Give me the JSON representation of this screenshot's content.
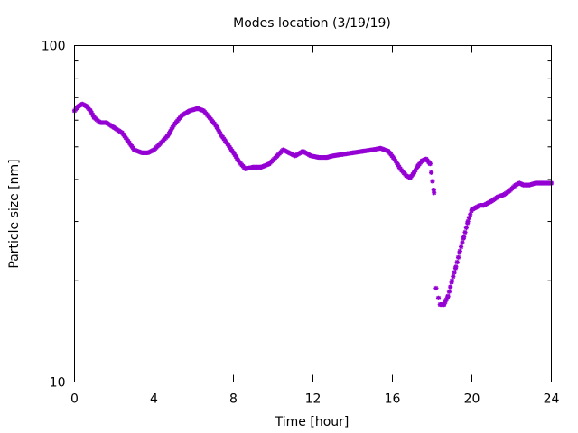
{
  "chart_data": {
    "type": "scatter",
    "title": "Modes location (3/19/19)",
    "xlabel": "Time [hour]",
    "ylabel": "Particle size [nm]",
    "xlim": [
      0,
      24
    ],
    "ylim": [
      10,
      100
    ],
    "yscale": "log",
    "grid": false,
    "legend": "none",
    "marker_color": "#9400d3",
    "x_ticks": [
      0,
      4,
      8,
      12,
      16,
      20,
      24
    ],
    "x_tick_labels": [
      "0",
      "4",
      "8",
      "12",
      "16",
      "20",
      "24"
    ],
    "y_ticks": [
      10,
      100
    ],
    "y_tick_labels": [
      "10",
      "100"
    ],
    "y_minor_ticks": [
      20,
      30,
      40,
      50,
      60,
      70,
      80,
      90
    ],
    "series": [
      {
        "x": [
          0.0,
          0.2,
          0.4,
          0.6,
          0.8,
          1.0,
          1.3,
          1.6,
          2.0,
          2.4,
          2.7,
          3.0,
          3.4,
          3.7,
          4.0,
          4.3,
          4.7,
          5.0,
          5.4,
          5.8,
          6.2,
          6.5,
          6.8,
          7.1,
          7.4,
          7.7,
          8.0,
          8.3,
          8.6,
          9.0,
          9.4,
          9.8,
          10.2,
          10.5,
          10.8,
          11.1,
          11.5,
          11.9,
          12.3,
          12.7,
          13.0,
          13.5,
          14.0,
          14.5,
          15.0,
          15.4,
          15.8,
          16.1,
          16.4,
          16.7,
          16.9,
          17.1,
          17.3,
          17.5,
          17.7,
          17.9,
          18.1,
          18.2,
          18.4,
          18.6,
          18.8,
          19.0,
          19.2,
          19.4,
          19.6,
          19.8,
          20.0,
          20.2,
          20.4,
          20.6,
          20.8,
          21.0,
          21.3,
          21.6,
          21.9,
          22.2,
          22.4,
          22.6,
          22.9,
          23.2,
          23.5,
          23.8,
          24.0
        ],
        "y": [
          64,
          66,
          67,
          66,
          64,
          61,
          59,
          59,
          57,
          55,
          52,
          49,
          48,
          48,
          49,
          51,
          54,
          58,
          62,
          64,
          65,
          64,
          61,
          58,
          54,
          51,
          48,
          45,
          43,
          43.5,
          43.5,
          44.5,
          47,
          49,
          48,
          47,
          48.5,
          47,
          46.5,
          46.5,
          47,
          47.5,
          48,
          48.5,
          49,
          49.5,
          48.5,
          46,
          43,
          41,
          40.5,
          42,
          44,
          45.5,
          46,
          44.5,
          36.5,
          19,
          17,
          17,
          18,
          20,
          22,
          24.5,
          27,
          30,
          32.5,
          33,
          33.5,
          33.5,
          34,
          34.5,
          35.5,
          36,
          37,
          38.5,
          39,
          38.5,
          38.5,
          39,
          39,
          39,
          39
        ]
      }
    ]
  }
}
